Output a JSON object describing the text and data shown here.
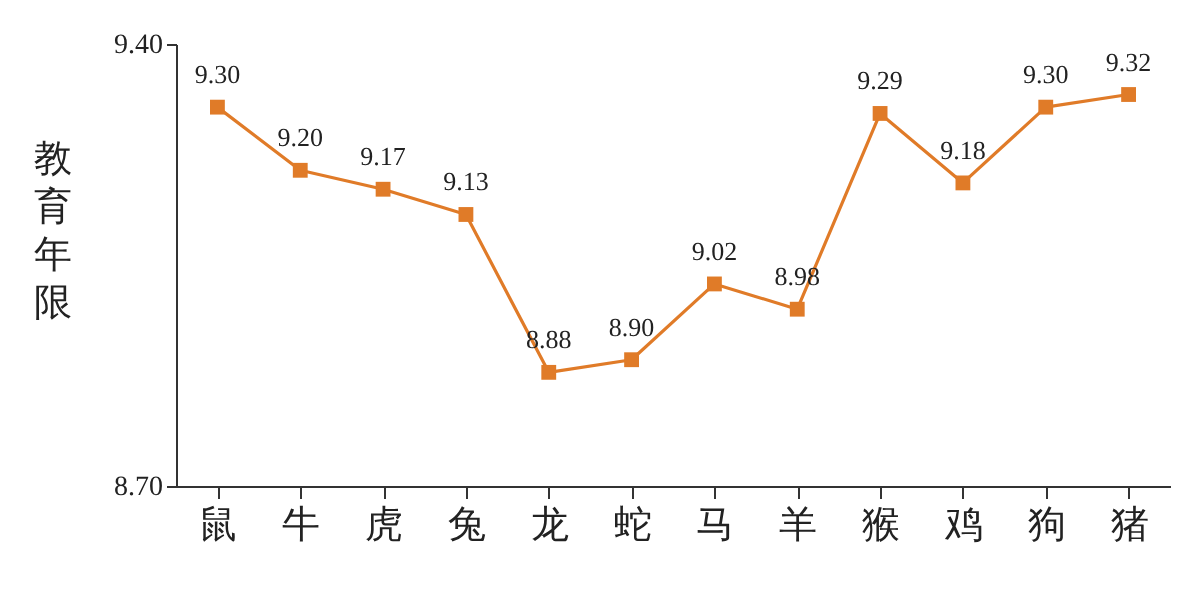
{
  "chart_data": {
    "type": "line",
    "ylabel": "教育年限",
    "categories": [
      "鼠",
      "牛",
      "虎",
      "兔",
      "龙",
      "蛇",
      "马",
      "羊",
      "猴",
      "鸡",
      "狗",
      "猪"
    ],
    "series": [
      {
        "color": "#e07b28",
        "values": [
          9.3,
          9.2,
          9.17,
          9.13,
          8.88,
          8.9,
          9.02,
          8.98,
          9.29,
          9.18,
          9.3,
          9.32
        ],
        "value_labels": [
          "9.30",
          "9.20",
          "9.17",
          "9.13",
          "8.88",
          "8.90",
          "9.02",
          "8.98",
          "9.29",
          "9.18",
          "9.30",
          "9.32"
        ]
      }
    ],
    "ylim": [
      8.7,
      9.4
    ],
    "yticks": [
      {
        "value": 8.7,
        "label": "8.70"
      },
      {
        "value": 9.4,
        "label": "9.40"
      }
    ],
    "marker": "square",
    "line_style": "solid",
    "grid": false
  }
}
